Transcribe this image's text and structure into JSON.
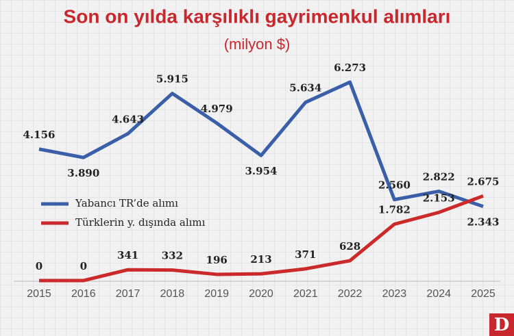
{
  "chart_data": {
    "type": "line",
    "title": "Son on yılda karşılıklı gayrimenkul alımları",
    "subtitle": "(milyon $)",
    "categories": [
      "2015",
      "2016",
      "2017",
      "2018",
      "2019",
      "2020",
      "2021",
      "2022",
      "2023",
      "2024",
      "2025"
    ],
    "series": [
      {
        "name": "Yabancı TR’de alımı",
        "color": "#3a5fa8",
        "values": [
          4156,
          3890,
          4643,
          5915,
          4979,
          3954,
          5634,
          6273,
          2560,
          2822,
          2343
        ],
        "value_labels": [
          "4.156",
          "3.890",
          "4.643",
          "5.915",
          "4.979",
          "3.954",
          "5.634",
          "6.273",
          "2.560",
          "2.822",
          "2.343"
        ]
      },
      {
        "name": "Türklerin y. dışında alımı",
        "color": "#cc2a2a",
        "values": [
          0,
          0,
          341,
          332,
          196,
          213,
          371,
          628,
          1782,
          2153,
          2675
        ],
        "value_labels": [
          "0",
          "0",
          "341",
          "332",
          "196",
          "213",
          "371",
          "628",
          "1.782",
          "2.153",
          "2.675"
        ]
      }
    ]
  },
  "logo": "D"
}
